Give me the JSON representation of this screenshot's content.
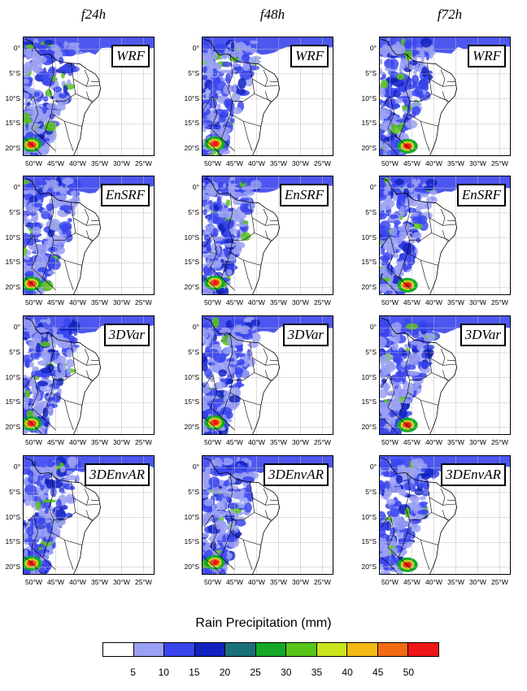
{
  "column_titles": [
    "f24h",
    "f48h",
    "f72h"
  ],
  "rows": [
    {
      "model": "WRF"
    },
    {
      "model": "EnSRF"
    },
    {
      "model": "3DVar"
    },
    {
      "model": "3DEnvAR"
    }
  ],
  "axes": {
    "lat_labels": [
      "0°",
      "5°S",
      "10°S",
      "15°S",
      "20°S"
    ],
    "lon_labels": [
      "50°W",
      "45°W",
      "40°W",
      "35°W",
      "30°W",
      "25°W"
    ]
  },
  "colorbar": {
    "title": "Rain Precipitation (mm)",
    "ticks": [
      "5",
      "10",
      "15",
      "20",
      "25",
      "30",
      "35",
      "40",
      "45",
      "50"
    ],
    "colors": [
      "#ffffff",
      "#9aa0f4",
      "#3a45ee",
      "#1222bf",
      "#1a7079",
      "#13a828",
      "#58c418",
      "#c7e51a",
      "#f4b814",
      "#f46a12",
      "#ee1616"
    ]
  }
}
